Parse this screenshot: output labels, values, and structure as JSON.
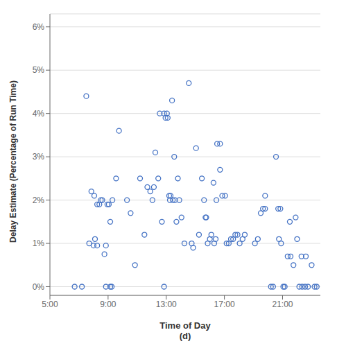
{
  "chart_data": {
    "type": "scatter",
    "xlabel": "Time of Day\n(d)",
    "ylabel": "Delay Estimate (Percentage of Run Time)",
    "color": "#4472C4",
    "marker": "circle",
    "grid": "y",
    "xlim": [
      5.0,
      23.6
    ],
    "ylim": [
      -0.002,
      0.063
    ],
    "xticks": [
      {
        "value": 5,
        "label": "5:00"
      },
      {
        "value": 9,
        "label": "9:00"
      },
      {
        "value": 13,
        "label": "13:00"
      },
      {
        "value": 17,
        "label": "17:00"
      },
      {
        "value": 21,
        "label": "21:00"
      }
    ],
    "yticks": [
      {
        "value": 0,
        "label": "0%"
      },
      {
        "value": 0.01,
        "label": "1%"
      },
      {
        "value": 0.02,
        "label": "2%"
      },
      {
        "value": 0.03,
        "label": "3%"
      },
      {
        "value": 0.04,
        "label": "4%"
      },
      {
        "value": 0.05,
        "label": "5%"
      },
      {
        "value": 0.06,
        "label": "6%"
      }
    ],
    "points": [
      [
        7.5,
        0.044
      ],
      [
        7.85,
        0.022
      ],
      [
        8.05,
        0.021
      ],
      [
        8.25,
        0.019
      ],
      [
        8.4,
        0.019
      ],
      [
        7.7,
        0.01
      ],
      [
        8.0,
        0.0095
      ],
      [
        8.1,
        0.011
      ],
      [
        8.25,
        0.0095
      ],
      [
        8.5,
        0.02
      ],
      [
        8.6,
        0.02
      ],
      [
        8.75,
        0.0075
      ],
      [
        8.85,
        0.0095
      ],
      [
        8.95,
        0.019
      ],
      [
        9.05,
        0.019
      ],
      [
        9.15,
        0.015
      ],
      [
        9.3,
        0.02
      ],
      [
        9.55,
        0.025
      ],
      [
        9.75,
        0.036
      ],
      [
        10.3,
        0.02
      ],
      [
        10.55,
        0.017
      ],
      [
        10.85,
        0.005
      ],
      [
        11.2,
        0.025
      ],
      [
        11.5,
        0.012
      ],
      [
        11.7,
        0.023
      ],
      [
        11.9,
        0.022
      ],
      [
        12.05,
        0.02
      ],
      [
        12.15,
        0.023
      ],
      [
        12.25,
        0.031
      ],
      [
        12.45,
        0.025
      ],
      [
        12.55,
        0.04
      ],
      [
        12.7,
        0.015
      ],
      [
        12.85,
        0.04
      ],
      [
        12.95,
        0.039
      ],
      [
        13.05,
        0.04
      ],
      [
        13.1,
        0.039
      ],
      [
        13.2,
        0.021
      ],
      [
        13.25,
        0.02
      ],
      [
        13.3,
        0.021
      ],
      [
        13.4,
        0.043
      ],
      [
        13.45,
        0.02
      ],
      [
        13.55,
        0.03
      ],
      [
        13.6,
        0.02
      ],
      [
        13.7,
        0.015
      ],
      [
        13.8,
        0.025
      ],
      [
        13.9,
        0.02
      ],
      [
        14.05,
        0.016
      ],
      [
        14.25,
        0.01
      ],
      [
        14.55,
        0.047
      ],
      [
        14.75,
        0.01
      ],
      [
        14.85,
        0.009
      ],
      [
        15.05,
        0.032
      ],
      [
        15.25,
        0.012
      ],
      [
        15.45,
        0.025
      ],
      [
        15.6,
        0.02
      ],
      [
        15.85,
        0.01
      ],
      [
        16.0,
        0.011
      ],
      [
        16.1,
        0.012
      ],
      [
        16.3,
        0.01
      ],
      [
        16.4,
        0.011
      ],
      [
        16.5,
        0.033
      ],
      [
        16.7,
        0.027
      ],
      [
        16.85,
        0.021
      ],
      [
        17.05,
        0.021
      ],
      [
        15.7,
        0.016
      ],
      [
        15.75,
        0.016
      ],
      [
        16.25,
        0.024
      ],
      [
        16.45,
        0.02
      ],
      [
        17.15,
        0.01
      ],
      [
        17.3,
        0.01
      ],
      [
        17.45,
        0.011
      ],
      [
        17.6,
        0.011
      ],
      [
        17.75,
        0.012
      ],
      [
        17.9,
        0.012
      ],
      [
        18.05,
        0.01
      ],
      [
        18.25,
        0.011
      ],
      [
        18.4,
        0.012
      ],
      [
        19.1,
        0.01
      ],
      [
        19.3,
        0.011
      ],
      [
        19.5,
        0.017
      ],
      [
        19.65,
        0.018
      ],
      [
        19.8,
        0.018
      ],
      [
        20.35,
        0.0
      ],
      [
        20.55,
        0.03
      ],
      [
        20.75,
        0.011
      ],
      [
        20.9,
        0.01
      ],
      [
        21.05,
        0.0
      ],
      [
        21.15,
        0.0
      ],
      [
        21.35,
        0.007
      ],
      [
        21.55,
        0.007
      ],
      [
        21.75,
        0.005
      ],
      [
        21.9,
        0.016
      ],
      [
        22.15,
        0.0
      ],
      [
        22.35,
        0.0
      ],
      [
        22.55,
        0.0
      ],
      [
        22.75,
        0.0
      ],
      [
        7.2,
        0.0
      ],
      [
        8.85,
        0.0
      ],
      [
        9.15,
        0.0
      ],
      [
        9.25,
        0.0
      ],
      [
        6.7,
        0.0
      ],
      [
        12.85,
        0.0
      ],
      [
        20.2,
        0.0
      ],
      [
        16.7,
        0.033
      ],
      [
        19.8,
        0.021
      ],
      [
        20.7,
        0.018
      ],
      [
        20.85,
        0.018
      ],
      [
        21.5,
        0.015
      ],
      [
        22.0,
        0.011
      ],
      [
        22.3,
        0.007
      ],
      [
        22.6,
        0.007
      ],
      [
        23.0,
        0.005
      ],
      [
        23.2,
        0.0
      ],
      [
        23.35,
        0.0
      ]
    ]
  }
}
